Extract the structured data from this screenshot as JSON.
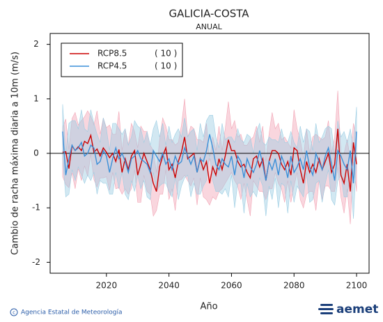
{
  "chart_data": {
    "type": "line",
    "title": "GALICIA-COSTA",
    "subtitle": "ANUAL",
    "y_label": "Cambio de racha máxima diaria a 10m (m/s)",
    "x_label": "Año",
    "xlim": [
      2002,
      2104
    ],
    "xticks": [
      2020,
      2040,
      2060,
      2080,
      2100
    ],
    "ylim": [
      -2.2,
      2.2
    ],
    "yticks": [
      2,
      1,
      0,
      -1,
      -2
    ],
    "legend_position": "upper-left",
    "x": [
      2006,
      2007,
      2008,
      2009,
      2010,
      2011,
      2012,
      2013,
      2014,
      2015,
      2016,
      2017,
      2018,
      2019,
      2020,
      2021,
      2022,
      2023,
      2024,
      2025,
      2026,
      2027,
      2028,
      2029,
      2030,
      2031,
      2032,
      2033,
      2034,
      2035,
      2036,
      2037,
      2038,
      2039,
      2040,
      2041,
      2042,
      2043,
      2044,
      2045,
      2046,
      2047,
      2048,
      2049,
      2050,
      2051,
      2052,
      2053,
      2054,
      2055,
      2056,
      2057,
      2058,
      2059,
      2060,
      2061,
      2062,
      2063,
      2064,
      2065,
      2066,
      2067,
      2068,
      2069,
      2070,
      2071,
      2072,
      2073,
      2074,
      2075,
      2076,
      2077,
      2078,
      2079,
      2080,
      2081,
      2082,
      2083,
      2084,
      2085,
      2086,
      2087,
      2088,
      2089,
      2090,
      2091,
      2092,
      2093,
      2094,
      2095,
      2096,
      2097,
      2098,
      2099,
      2100
    ],
    "series": [
      {
        "name": "RCP8.5",
        "legend_note": "( 10 )",
        "color": "#cc0000",
        "band_color": "#f2a5b5",
        "values": [
          0.02,
          0.03,
          -0.28,
          0.14,
          0.05,
          0.12,
          0.05,
          0.22,
          0.18,
          0.33,
          0.02,
          0.08,
          -0.05,
          0.1,
          0.02,
          -0.08,
          0.0,
          -0.15,
          0.07,
          -0.35,
          -0.1,
          -0.3,
          -0.05,
          0.05,
          -0.4,
          -0.2,
          0.0,
          -0.15,
          -0.3,
          -0.55,
          -0.7,
          -0.25,
          -0.05,
          0.1,
          -0.3,
          -0.2,
          -0.45,
          -0.15,
          0.02,
          0.3,
          -0.1,
          -0.05,
          0.0,
          -0.35,
          -0.1,
          -0.3,
          -0.15,
          -0.55,
          -0.25,
          -0.4,
          -0.1,
          -0.3,
          -0.05,
          0.25,
          0.05,
          0.05,
          -0.15,
          -0.25,
          -0.2,
          -0.35,
          -0.45,
          -0.1,
          -0.05,
          -0.25,
          -0.1,
          -0.5,
          -0.15,
          0.05,
          0.05,
          0.0,
          -0.2,
          -0.3,
          -0.15,
          -0.4,
          0.1,
          0.05,
          -0.3,
          -0.55,
          -0.15,
          -0.35,
          -0.2,
          -0.35,
          -0.1,
          -0.3,
          -0.15,
          0.0,
          -0.35,
          -0.2,
          0.45,
          -0.4,
          -0.55,
          -0.2,
          -0.7,
          0.2,
          -0.2
        ],
        "range_high": [
          0.47,
          0.63,
          0.07,
          0.64,
          0.75,
          0.52,
          0.6,
          0.67,
          0.78,
          0.68,
          0.52,
          0.78,
          0.35,
          0.65,
          0.47,
          0.52,
          0.35,
          0.35,
          0.77,
          0.05,
          0.45,
          0.15,
          0.55,
          0.4,
          0.1,
          0.5,
          0.4,
          0.4,
          0.15,
          0.05,
          -0.35,
          0.25,
          0.65,
          0.5,
          0.25,
          0.25,
          0.15,
          0.2,
          0.52,
          1.0,
          0.3,
          0.5,
          0.45,
          0.25,
          0.25,
          0.2,
          0.55,
          -0.15,
          0.3,
          0.05,
          0.5,
          0.05,
          0.45,
          0.95,
          0.45,
          0.6,
          0.3,
          0.35,
          0.15,
          0.15,
          0.25,
          0.3,
          0.5,
          0.2,
          0.5,
          -0.15,
          0.35,
          0.75,
          0.45,
          0.55,
          0.25,
          0.3,
          0.2,
          0.1,
          0.8,
          0.45,
          0.25,
          -0.1,
          0.45,
          0.0,
          0.3,
          0.35,
          0.3,
          0.25,
          0.3,
          0.6,
          0.0,
          0.3,
          1.15,
          0.0,
          0.0,
          0.25,
          -0.1,
          0.55,
          0.3
        ],
        "range_low": [
          -0.43,
          -0.57,
          -0.63,
          -0.36,
          -0.65,
          -0.28,
          -0.5,
          -0.23,
          -0.42,
          -0.02,
          -0.48,
          -0.62,
          -0.45,
          -0.45,
          -0.43,
          -0.68,
          -0.35,
          -0.65,
          -0.63,
          -0.75,
          -0.65,
          -0.75,
          -0.65,
          -0.3,
          -0.9,
          -0.9,
          -0.4,
          -0.7,
          -0.75,
          -1.15,
          -1.05,
          -0.75,
          -0.75,
          -0.3,
          -0.85,
          -0.65,
          -1.05,
          -0.5,
          -0.48,
          -0.4,
          -0.5,
          -0.6,
          -0.45,
          -0.95,
          -0.45,
          -0.8,
          -0.85,
          -0.95,
          -0.8,
          -0.85,
          -0.7,
          -0.65,
          -0.55,
          -0.45,
          -0.35,
          -0.5,
          -0.6,
          -0.85,
          -0.55,
          -0.85,
          -1.15,
          -0.5,
          -0.6,
          -0.7,
          -0.7,
          -0.85,
          -0.65,
          -0.65,
          -0.35,
          -0.55,
          -0.65,
          -0.9,
          -0.5,
          -0.9,
          -0.6,
          -0.35,
          -0.85,
          -1.0,
          -0.75,
          -0.7,
          -0.7,
          -1.05,
          -0.5,
          -0.85,
          -0.6,
          -0.6,
          -0.7,
          -0.7,
          -0.25,
          -0.8,
          -1.1,
          -0.65,
          -1.3,
          -0.15,
          -0.7
        ]
      },
      {
        "name": "RCP4.5",
        "legend_note": "( 10 )",
        "color": "#3a8fd8",
        "band_color": "#9ccde3",
        "values": [
          0.4,
          -0.4,
          -0.1,
          0.15,
          0.05,
          0.1,
          0.2,
          -0.05,
          0.0,
          0.15,
          0.1,
          -0.2,
          -0.15,
          0.05,
          -0.05,
          -0.35,
          -0.1,
          0.1,
          -0.1,
          0.0,
          -0.15,
          -0.35,
          -0.1,
          -0.05,
          0.05,
          -0.1,
          -0.15,
          -0.2,
          -0.35,
          0.05,
          -0.05,
          -0.15,
          0.0,
          -0.2,
          -0.1,
          -0.3,
          -0.05,
          -0.2,
          -0.15,
          0.1,
          -0.05,
          -0.2,
          -0.05,
          -0.35,
          -0.1,
          -0.15,
          0.05,
          0.35,
          0.1,
          -0.2,
          -0.3,
          -0.1,
          -0.2,
          -0.25,
          -0.05,
          -0.4,
          -0.05,
          -0.15,
          -0.45,
          -0.1,
          -0.25,
          -0.35,
          -0.2,
          0.05,
          -0.2,
          -0.5,
          -0.15,
          -0.3,
          -0.1,
          -0.4,
          -0.05,
          -0.2,
          -0.45,
          -0.05,
          -0.35,
          -0.25,
          -0.1,
          -0.3,
          0.05,
          -0.25,
          -0.4,
          0.0,
          -0.15,
          -0.3,
          -0.05,
          0.1,
          -0.2,
          -0.5,
          0.05,
          -0.05,
          -0.2,
          -0.3,
          0.05,
          -0.55,
          0.4
        ],
        "range_high": [
          0.9,
          0.0,
          0.55,
          0.6,
          0.6,
          0.45,
          0.8,
          0.45,
          0.4,
          0.8,
          0.55,
          0.35,
          0.2,
          0.65,
          0.45,
          0.05,
          0.55,
          0.55,
          0.45,
          0.35,
          0.45,
          0.15,
          0.3,
          0.6,
          0.5,
          0.45,
          0.2,
          0.4,
          0.15,
          0.45,
          0.6,
          0.3,
          0.55,
          0.15,
          0.5,
          0.2,
          0.35,
          0.45,
          0.3,
          0.65,
          0.3,
          0.4,
          0.45,
          0.05,
          0.55,
          0.3,
          0.6,
          0.7,
          0.7,
          0.3,
          0.1,
          0.55,
          0.25,
          0.3,
          0.3,
          0.2,
          0.45,
          0.25,
          0.2,
          0.35,
          0.3,
          0.0,
          0.4,
          0.55,
          0.2,
          0.15,
          0.3,
          0.25,
          0.25,
          0.2,
          0.45,
          0.2,
          0.2,
          0.4,
          0.2,
          0.1,
          0.5,
          0.2,
          0.45,
          0.4,
          0.05,
          0.55,
          0.2,
          0.3,
          0.45,
          0.5,
          0.45,
          -0.05,
          0.6,
          0.3,
          0.4,
          0.2,
          0.45,
          0.1,
          0.85
        ],
        "range_low": [
          -0.1,
          -0.8,
          -0.75,
          -0.3,
          -0.5,
          -0.25,
          -0.4,
          -0.55,
          -0.4,
          -0.5,
          -0.35,
          -0.75,
          -0.5,
          -0.55,
          -0.55,
          -0.75,
          -0.75,
          -0.35,
          -0.65,
          -0.35,
          -0.75,
          -0.85,
          -0.5,
          -0.7,
          -0.4,
          -0.65,
          -0.5,
          -0.8,
          -0.85,
          -0.35,
          -0.7,
          -0.6,
          -0.55,
          -0.55,
          -0.7,
          -0.8,
          -0.45,
          -0.85,
          -0.6,
          -0.45,
          -0.4,
          -0.8,
          -0.55,
          -0.75,
          -0.75,
          -0.6,
          -0.5,
          0.0,
          -0.5,
          -0.7,
          -0.7,
          -0.75,
          -0.65,
          -0.8,
          -0.4,
          -1.0,
          -0.55,
          -0.55,
          -1.1,
          -0.55,
          -0.8,
          -0.7,
          -0.8,
          -0.45,
          -0.6,
          -1.15,
          -0.6,
          -0.85,
          -0.45,
          -1.0,
          -0.55,
          -0.6,
          -1.1,
          -0.5,
          -0.9,
          -0.6,
          -0.7,
          -0.8,
          -0.35,
          -0.9,
          -0.85,
          -0.55,
          -0.5,
          -0.9,
          -0.55,
          -0.3,
          -0.85,
          -0.95,
          -0.5,
          -0.4,
          -0.8,
          -0.8,
          -0.35,
          -1.2,
          -0.05
        ]
      }
    ],
    "footer": {
      "agency": "Agencia Estatal de Meteorología",
      "logo": "aemet"
    }
  }
}
